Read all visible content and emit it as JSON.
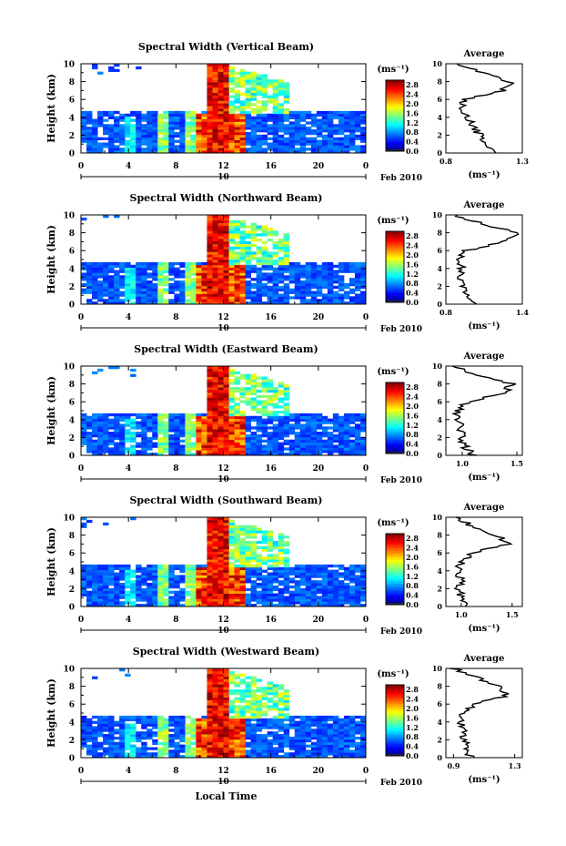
{
  "chart_data": [
    {
      "type": "heatmap",
      "title": "Spectral Width (Vertical Beam)",
      "ylabel": "Height (km)",
      "xlim": [
        0,
        24
      ],
      "ylim": [
        0,
        10
      ],
      "x_ticks": [
        "0",
        "4",
        "8",
        "12",
        "16",
        "20",
        "0"
      ],
      "y_ticks": [
        "0",
        "2",
        "4",
        "6",
        "8",
        "10"
      ],
      "date_mark": "10",
      "date_label": "Feb 2010",
      "colorbar": {
        "unit": "(ms⁻¹)",
        "ticks": [
          "0.0",
          "0.4",
          "0.8",
          "1.2",
          "1.6",
          "2.0",
          "2.4",
          "2.8"
        ],
        "range": [
          0,
          3.0
        ]
      },
      "profile": {
        "title": "Average",
        "xlabel": "(ms⁻¹)",
        "xticks": [
          "0.8",
          "1.3"
        ],
        "xlim": [
          0.8,
          1.3
        ],
        "y": [
          0,
          1,
          2,
          3,
          4,
          5,
          6,
          7,
          8,
          9,
          10
        ],
        "x": [
          1.1,
          1.08,
          1.02,
          0.98,
          0.95,
          0.9,
          0.92,
          1.18,
          1.22,
          1.05,
          0.85
        ]
      }
    },
    {
      "type": "heatmap",
      "title": "Spectral Width (Northward Beam)",
      "ylabel": "Height (km)",
      "xlim": [
        0,
        24
      ],
      "ylim": [
        0,
        10
      ],
      "x_ticks": [
        "0",
        "4",
        "8",
        "12",
        "16",
        "20",
        "0"
      ],
      "y_ticks": [
        "0",
        "2",
        "4",
        "6",
        "8",
        "10"
      ],
      "date_mark": "10",
      "date_label": "Feb 2010",
      "colorbar": {
        "unit": "(ms⁻¹)",
        "ticks": [
          "0.0",
          "0.4",
          "0.8",
          "1.2",
          "1.6",
          "2.0",
          "2.4",
          "2.8"
        ],
        "range": [
          0,
          3.0
        ]
      },
      "profile": {
        "title": "Average",
        "xlabel": "(ms⁻¹)",
        "xticks": [
          "0.8",
          "1.4"
        ],
        "xlim": [
          0.8,
          1.4
        ],
        "y": [
          0,
          1,
          2,
          3,
          4,
          5,
          6,
          7,
          8,
          9,
          10
        ],
        "x": [
          1.05,
          0.98,
          0.95,
          0.92,
          0.93,
          0.9,
          0.96,
          1.25,
          1.35,
          1.1,
          0.86
        ]
      }
    },
    {
      "type": "heatmap",
      "title": "Spectral Width (Eastward Beam)",
      "ylabel": "Height (km)",
      "xlim": [
        0,
        24
      ],
      "ylim": [
        0,
        10
      ],
      "x_ticks": [
        "0",
        "4",
        "8",
        "12",
        "16",
        "20",
        "0"
      ],
      "y_ticks": [
        "0",
        "2",
        "4",
        "6",
        "8",
        "10"
      ],
      "date_mark": "10",
      "date_label": "Feb 2010",
      "colorbar": {
        "unit": "(ms⁻¹)",
        "ticks": [
          "0.0",
          "0.4",
          "0.8",
          "1.2",
          "1.6",
          "2.0",
          "2.4",
          "2.8"
        ],
        "range": [
          0,
          3.0
        ]
      },
      "profile": {
        "title": "Average",
        "xlabel": "(ms⁻¹)",
        "xticks": [
          "1.0",
          "1.5"
        ],
        "xlim": [
          0.85,
          1.55
        ],
        "y": [
          0,
          1,
          2,
          3,
          4,
          5,
          6,
          7,
          8,
          9,
          10
        ],
        "x": [
          1.1,
          1.02,
          1.0,
          0.98,
          0.97,
          0.95,
          1.05,
          1.4,
          1.45,
          1.15,
          0.9
        ]
      }
    },
    {
      "type": "heatmap",
      "title": "Spectral Width (Southward Beam)",
      "ylabel": "Height (km)",
      "xlim": [
        0,
        24
      ],
      "ylim": [
        0,
        10
      ],
      "x_ticks": [
        "0",
        "4",
        "8",
        "12",
        "16",
        "20",
        "0"
      ],
      "y_ticks": [
        "0",
        "2",
        "4",
        "6",
        "8",
        "10"
      ],
      "date_mark": "10",
      "date_label": "Feb 2010",
      "colorbar": {
        "unit": "(ms⁻¹)",
        "ticks": [
          "0.0",
          "0.4",
          "0.8",
          "1.2",
          "1.6",
          "2.0",
          "2.4",
          "2.8"
        ],
        "range": [
          0,
          3.0
        ]
      },
      "profile": {
        "title": "Average",
        "xlabel": "(ms⁻¹)",
        "xticks": [
          "1.0",
          "1.5"
        ],
        "xlim": [
          0.85,
          1.6
        ],
        "y": [
          0,
          1,
          2,
          3,
          4,
          5,
          6,
          7,
          8,
          9,
          10
        ],
        "x": [
          1.05,
          1.0,
          0.98,
          1.0,
          0.98,
          1.0,
          1.12,
          1.45,
          1.35,
          1.12,
          0.92
        ]
      }
    },
    {
      "type": "heatmap",
      "title": "Spectral Width (Westward Beam)",
      "ylabel": "Height (km)",
      "xlabel": "Local Time",
      "xlim": [
        0,
        24
      ],
      "ylim": [
        0,
        10
      ],
      "x_ticks": [
        "0",
        "4",
        "8",
        "12",
        "16",
        "20",
        "0"
      ],
      "y_ticks": [
        "0",
        "2",
        "4",
        "6",
        "8",
        "10"
      ],
      "date_mark": "10",
      "date_label": "Feb 2010",
      "colorbar": {
        "unit": "(ms⁻¹)",
        "ticks": [
          "0.0",
          "0.4",
          "0.8",
          "1.2",
          "1.6",
          "2.0",
          "2.4",
          "2.8"
        ],
        "range": [
          0,
          3.0
        ]
      },
      "profile": {
        "title": "Average",
        "xlabel": "(ms⁻¹)",
        "xticks": [
          "0.9",
          "1.3"
        ],
        "xlim": [
          0.85,
          1.35
        ],
        "y": [
          0,
          1,
          2,
          3,
          4,
          5,
          6,
          7,
          8,
          9,
          10
        ],
        "x": [
          1.02,
          0.98,
          0.97,
          0.96,
          0.95,
          0.95,
          1.05,
          1.25,
          1.2,
          1.05,
          0.9
        ]
      }
    }
  ]
}
